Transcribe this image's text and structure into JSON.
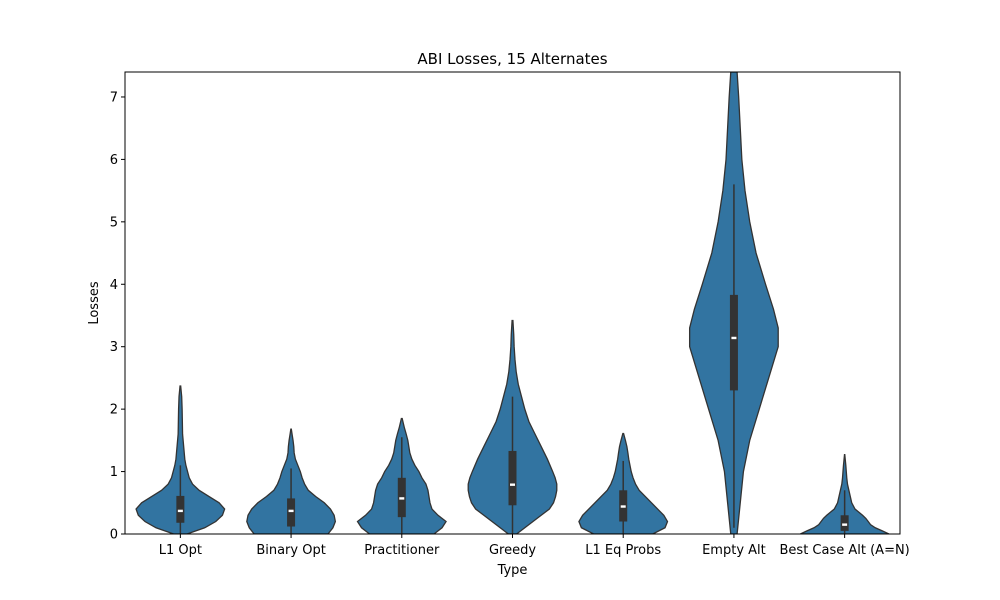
{
  "chart_data": {
    "type": "violin",
    "title": "ABI Losses, 15 Alternates",
    "xlabel": "Type",
    "ylabel": "Losses",
    "ylim": [
      0,
      7.4
    ],
    "yticks": [
      0,
      1,
      2,
      3,
      4,
      5,
      6,
      7
    ],
    "grid": false,
    "fill_color": "#3274a1",
    "edge_color": "#333333",
    "categories": [
      "L1 Opt",
      "Binary Opt",
      "Practitioner",
      "Greedy",
      "L1 Eq Probs",
      "Empty Alt",
      "Best Case Alt (A=N)"
    ],
    "series": [
      {
        "median": 0.37,
        "q1": 0.18,
        "q3": 0.61,
        "whisker_low": 0.0,
        "whisker_high": 1.1,
        "max": 2.37,
        "density": [
          [
            0,
            0.06
          ],
          [
            0.1,
            0.22
          ],
          [
            0.2,
            0.32
          ],
          [
            0.3,
            0.38
          ],
          [
            0.4,
            0.4
          ],
          [
            0.5,
            0.35
          ],
          [
            0.6,
            0.26
          ],
          [
            0.7,
            0.17
          ],
          [
            0.8,
            0.11
          ],
          [
            0.9,
            0.08
          ],
          [
            1.0,
            0.065
          ],
          [
            1.1,
            0.05
          ],
          [
            1.2,
            0.04
          ],
          [
            1.4,
            0.03
          ],
          [
            1.6,
            0.02
          ],
          [
            1.8,
            0.018
          ],
          [
            2.0,
            0.016
          ],
          [
            2.2,
            0.012
          ],
          [
            2.37,
            0.003
          ]
        ]
      },
      {
        "median": 0.37,
        "q1": 0.12,
        "q3": 0.57,
        "whisker_low": 0.0,
        "whisker_high": 1.05,
        "max": 1.68,
        "density": [
          [
            0,
            0.3
          ],
          [
            0.1,
            0.34
          ],
          [
            0.2,
            0.36
          ],
          [
            0.3,
            0.35
          ],
          [
            0.4,
            0.32
          ],
          [
            0.5,
            0.27
          ],
          [
            0.6,
            0.2
          ],
          [
            0.7,
            0.14
          ],
          [
            0.8,
            0.11
          ],
          [
            0.9,
            0.09
          ],
          [
            1.0,
            0.075
          ],
          [
            1.1,
            0.055
          ],
          [
            1.2,
            0.035
          ],
          [
            1.3,
            0.025
          ],
          [
            1.4,
            0.022
          ],
          [
            1.5,
            0.016
          ],
          [
            1.6,
            0.008
          ],
          [
            1.68,
            0.002
          ]
        ]
      },
      {
        "median": 0.57,
        "q1": 0.27,
        "q3": 0.9,
        "whisker_low": 0.0,
        "whisker_high": 1.55,
        "max": 1.85,
        "density": [
          [
            0,
            0.16
          ],
          [
            0.1,
            0.2
          ],
          [
            0.2,
            0.22
          ],
          [
            0.3,
            0.18
          ],
          [
            0.4,
            0.15
          ],
          [
            0.5,
            0.14
          ],
          [
            0.6,
            0.135
          ],
          [
            0.7,
            0.13
          ],
          [
            0.8,
            0.12
          ],
          [
            0.9,
            0.1
          ],
          [
            1.0,
            0.085
          ],
          [
            1.1,
            0.065
          ],
          [
            1.2,
            0.05
          ],
          [
            1.3,
            0.04
          ],
          [
            1.4,
            0.035
          ],
          [
            1.5,
            0.03
          ],
          [
            1.6,
            0.022
          ],
          [
            1.7,
            0.013
          ],
          [
            1.85,
            0.002
          ]
        ]
      },
      {
        "median": 0.79,
        "q1": 0.46,
        "q3": 1.33,
        "whisker_low": 0.0,
        "whisker_high": 2.2,
        "max": 3.42,
        "density": [
          [
            0,
            0.01
          ],
          [
            0.1,
            0.03
          ],
          [
            0.2,
            0.05
          ],
          [
            0.3,
            0.07
          ],
          [
            0.4,
            0.09
          ],
          [
            0.5,
            0.1
          ],
          [
            0.6,
            0.105
          ],
          [
            0.7,
            0.108
          ],
          [
            0.8,
            0.108
          ],
          [
            0.9,
            0.104
          ],
          [
            1.0,
            0.098
          ],
          [
            1.2,
            0.085
          ],
          [
            1.4,
            0.07
          ],
          [
            1.6,
            0.055
          ],
          [
            1.8,
            0.04
          ],
          [
            2.0,
            0.03
          ],
          [
            2.2,
            0.022
          ],
          [
            2.4,
            0.014
          ],
          [
            2.6,
            0.009
          ],
          [
            2.8,
            0.006
          ],
          [
            3.0,
            0.004
          ],
          [
            3.2,
            0.003
          ],
          [
            3.42,
            0.001
          ]
        ]
      },
      {
        "median": 0.44,
        "q1": 0.2,
        "q3": 0.7,
        "whisker_low": 0.0,
        "whisker_high": 1.17,
        "max": 1.61,
        "density": [
          [
            0,
            0.24
          ],
          [
            0.1,
            0.34
          ],
          [
            0.2,
            0.36
          ],
          [
            0.3,
            0.33
          ],
          [
            0.4,
            0.28
          ],
          [
            0.5,
            0.23
          ],
          [
            0.6,
            0.18
          ],
          [
            0.7,
            0.13
          ],
          [
            0.8,
            0.1
          ],
          [
            0.9,
            0.08
          ],
          [
            1.0,
            0.065
          ],
          [
            1.1,
            0.055
          ],
          [
            1.2,
            0.045
          ],
          [
            1.3,
            0.038
          ],
          [
            1.4,
            0.03
          ],
          [
            1.5,
            0.018
          ],
          [
            1.61,
            0.003
          ]
        ]
      },
      {
        "median": 3.14,
        "q1": 2.3,
        "q3": 3.83,
        "whisker_low": 0.1,
        "whisker_high": 5.6,
        "max": 7.4,
        "density": [
          [
            0,
            0.002
          ],
          [
            0.5,
            0.004
          ],
          [
            1.0,
            0.006
          ],
          [
            1.5,
            0.01
          ],
          [
            2.0,
            0.016
          ],
          [
            2.5,
            0.022
          ],
          [
            3.0,
            0.028
          ],
          [
            3.3,
            0.028
          ],
          [
            3.6,
            0.025
          ],
          [
            4.0,
            0.02
          ],
          [
            4.5,
            0.014
          ],
          [
            5.0,
            0.01
          ],
          [
            5.5,
            0.007
          ],
          [
            6.0,
            0.005
          ],
          [
            6.5,
            0.004
          ],
          [
            7.0,
            0.003
          ],
          [
            7.4,
            0.002
          ]
        ]
      },
      {
        "median": 0.15,
        "q1": 0.05,
        "q3": 0.3,
        "whisker_low": 0.0,
        "whisker_high": 0.7,
        "max": 1.27,
        "density": [
          [
            0,
            0.94
          ],
          [
            0.05,
            0.8
          ],
          [
            0.1,
            0.65
          ],
          [
            0.15,
            0.55
          ],
          [
            0.2,
            0.5
          ],
          [
            0.25,
            0.45
          ],
          [
            0.3,
            0.38
          ],
          [
            0.35,
            0.3
          ],
          [
            0.4,
            0.22
          ],
          [
            0.5,
            0.15
          ],
          [
            0.6,
            0.12
          ],
          [
            0.7,
            0.09
          ],
          [
            0.8,
            0.06
          ],
          [
            0.9,
            0.045
          ],
          [
            1.0,
            0.035
          ],
          [
            1.1,
            0.025
          ],
          [
            1.2,
            0.012
          ],
          [
            1.27,
            0.003
          ]
        ]
      }
    ]
  }
}
